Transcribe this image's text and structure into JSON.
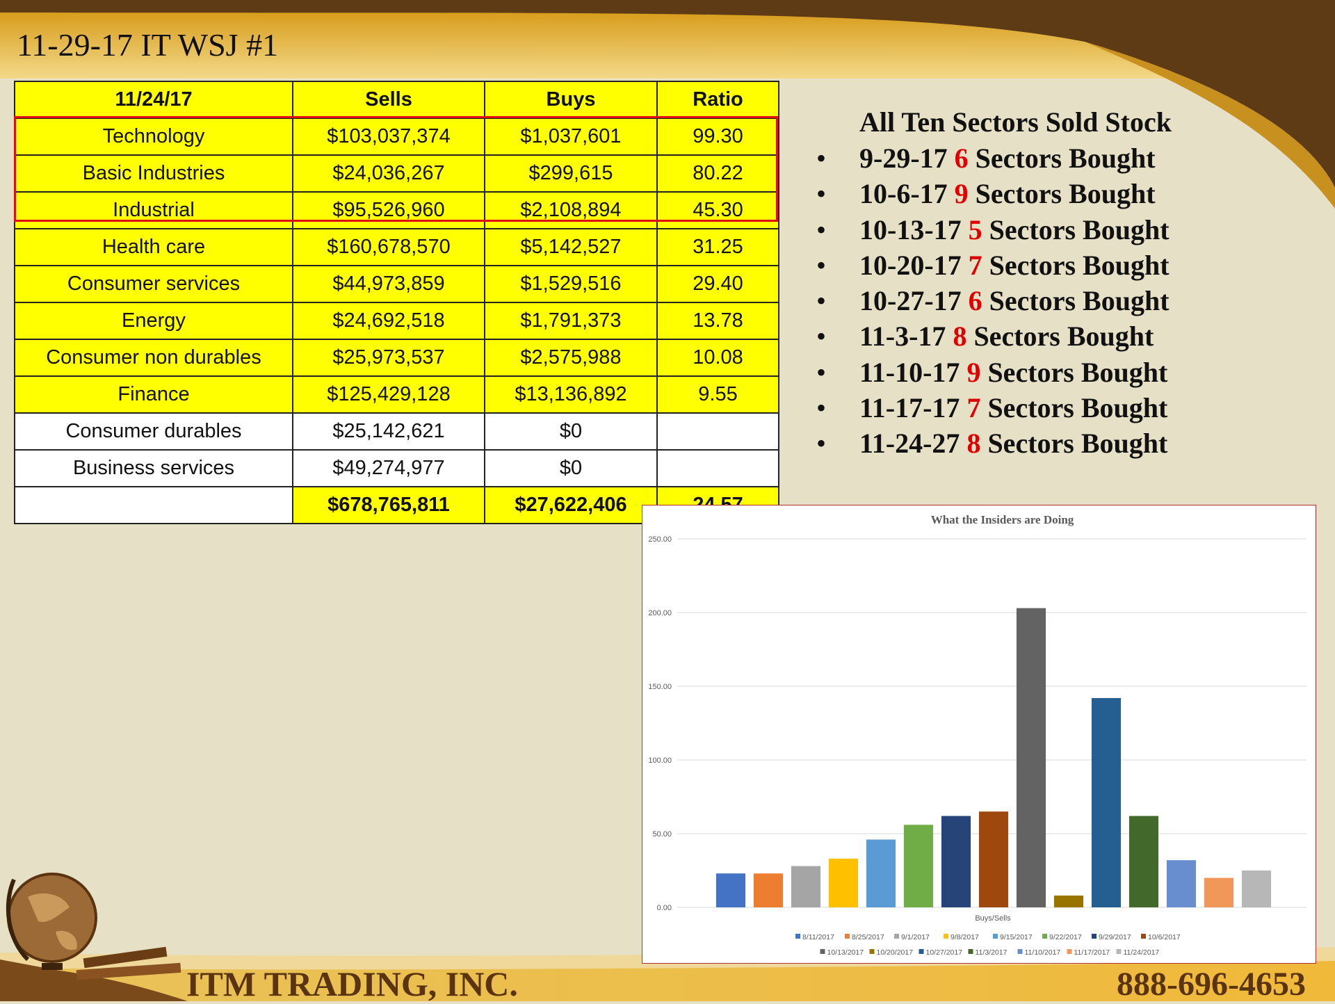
{
  "slide": {
    "title": "11-29-17 IT WSJ #1",
    "footer_company": "ITM TRADING, INC.",
    "footer_phone": "888-696-4653"
  },
  "table": {
    "headers": [
      "11/24/17",
      "Sells",
      "Buys",
      "Ratio"
    ],
    "rows": [
      {
        "sector": "Technology",
        "sells": "$103,037,374",
        "buys": "$1,037,601",
        "ratio": "99.30",
        "highlight": true
      },
      {
        "sector": "Basic Industries",
        "sells": "$24,036,267",
        "buys": "$299,615",
        "ratio": "80.22",
        "highlight": true
      },
      {
        "sector": "Industrial",
        "sells": "$95,526,960",
        "buys": "$2,108,894",
        "ratio": "45.30",
        "highlight": true
      },
      {
        "sector": "Health care",
        "sells": "$160,678,570",
        "buys": "$5,142,527",
        "ratio": "31.25"
      },
      {
        "sector": "Consumer services",
        "sells": "$44,973,859",
        "buys": "$1,529,516",
        "ratio": "29.40"
      },
      {
        "sector": "Energy",
        "sells": "$24,692,518",
        "buys": "$1,791,373",
        "ratio": "13.78"
      },
      {
        "sector": "Consumer non durables",
        "sells": "$25,973,537",
        "buys": "$2,575,988",
        "ratio": "10.08"
      },
      {
        "sector": "Finance",
        "sells": "$125,429,128",
        "buys": "$13,136,892",
        "ratio": "9.55"
      },
      {
        "sector": "Consumer durables",
        "sells": "$25,142,621",
        "buys": "$0",
        "ratio": ""
      },
      {
        "sector": "Business services",
        "sells": "$49,274,977",
        "buys": "$0",
        "ratio": ""
      }
    ],
    "totals": {
      "sector": "",
      "sells": "$678,765,811",
      "buys": "$27,622,406",
      "ratio": "24.57"
    }
  },
  "sidebar": {
    "heading": "All Ten Sectors Sold Stock",
    "items": [
      {
        "date": "9-29-17",
        "count": "6",
        "text": "Sectors Bought"
      },
      {
        "date": "10-6-17",
        "count": "9",
        "text": "Sectors Bought"
      },
      {
        "date": "10-13-17",
        "count": "5",
        "text": "Sectors Bought"
      },
      {
        "date": "10-20-17",
        "count": "7",
        "text": "Sectors Bought"
      },
      {
        "date": "10-27-17",
        "count": "6",
        "text": "Sectors Bought"
      },
      {
        "date": "11-3-17",
        "count": "8",
        "text": "Sectors Bought"
      },
      {
        "date": "11-10-17",
        "count": "9",
        "text": "Sectors Bought"
      },
      {
        "date": "11-17-17",
        "count": "7",
        "text": "Sectors Bought"
      },
      {
        "date": "11-24-27",
        "count": "8",
        "text": "Sectors Bought"
      }
    ]
  },
  "chart_data": {
    "type": "bar",
    "title": "What the Insiders are Doing",
    "xlabel": "Buys/Sells",
    "ylabel": "",
    "ylim": [
      0,
      250
    ],
    "yticks": [
      "0.00",
      "50.00",
      "100.00",
      "150.00",
      "200.00",
      "250.00"
    ],
    "grid": true,
    "legend": "bottom",
    "series": [
      {
        "name": "8/11/2017",
        "value": 23,
        "color": "#4472c4"
      },
      {
        "name": "8/25/2017",
        "value": 23,
        "color": "#ed7d31"
      },
      {
        "name": "9/1/2017",
        "value": 28,
        "color": "#a5a5a5"
      },
      {
        "name": "9/8/2017",
        "value": 33,
        "color": "#ffc000"
      },
      {
        "name": "9/15/2017",
        "value": 46,
        "color": "#5b9bd5"
      },
      {
        "name": "9/22/2017",
        "value": 56,
        "color": "#70ad47"
      },
      {
        "name": "9/29/2017",
        "value": 62,
        "color": "#264478"
      },
      {
        "name": "10/6/2017",
        "value": 65,
        "color": "#9e480e"
      },
      {
        "name": "10/13/2017",
        "value": 203,
        "color": "#636363"
      },
      {
        "name": "10/20/2017",
        "value": 8,
        "color": "#997300"
      },
      {
        "name": "10/27/2017",
        "value": 142,
        "color": "#255e91"
      },
      {
        "name": "11/3/2017",
        "value": 62,
        "color": "#43682b"
      },
      {
        "name": "11/10/2017",
        "value": 32,
        "color": "#698ed0"
      },
      {
        "name": "11/17/2017",
        "value": 20,
        "color": "#f1975a"
      },
      {
        "name": "11/24/2017",
        "value": 25,
        "color": "#b7b7b7"
      }
    ]
  }
}
